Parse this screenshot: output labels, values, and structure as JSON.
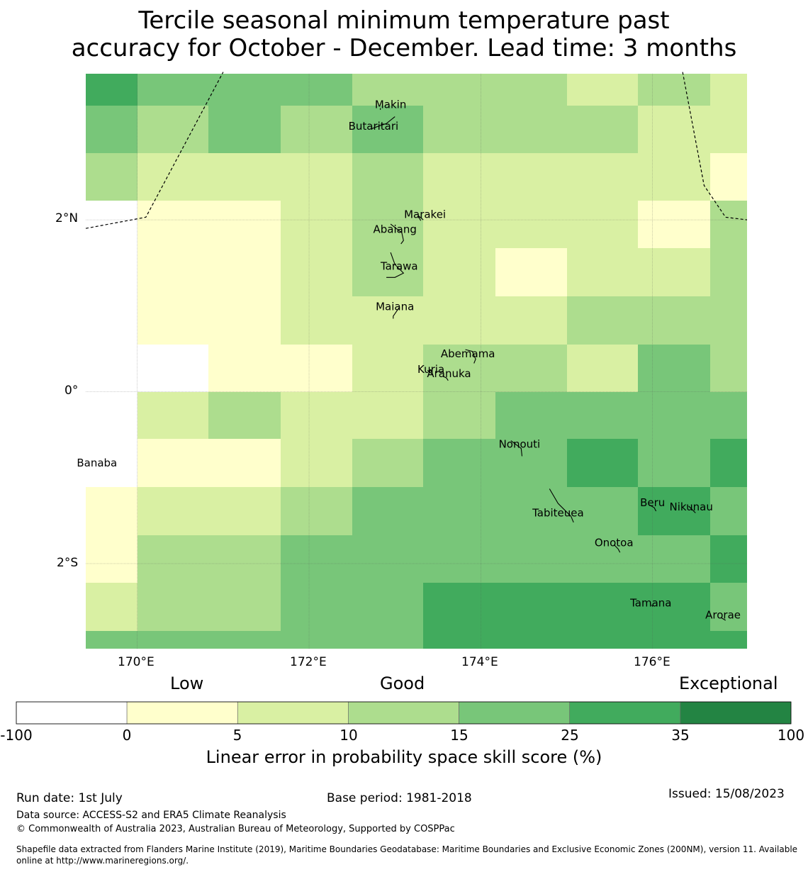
{
  "title": {
    "line1": "Tercile seasonal minimum temperature past",
    "line2": "accuracy for October - December. Lead time: 3 months"
  },
  "axes": {
    "lon_ticks": [
      "170°E",
      "172°E",
      "174°E",
      "176°E"
    ],
    "lat_ticks": [
      "2°N",
      "0°",
      "2°S"
    ]
  },
  "places": [
    {
      "name": "Makin",
      "lon": 172.95,
      "lat": 3.3
    },
    {
      "name": "Butaritari",
      "lon": 172.75,
      "lat": 3.05
    },
    {
      "name": "Marakei",
      "lon": 173.35,
      "lat": 2.02
    },
    {
      "name": "Abaiang",
      "lon": 173.0,
      "lat": 1.85
    },
    {
      "name": "Tarawa",
      "lon": 173.05,
      "lat": 1.42
    },
    {
      "name": "Maiana",
      "lon": 173.0,
      "lat": 0.95
    },
    {
      "name": "Abemama",
      "lon": 173.85,
      "lat": 0.4
    },
    {
      "name": "Kuria",
      "lon": 173.42,
      "lat": 0.22
    },
    {
      "name": "Aranuka",
      "lon": 173.63,
      "lat": 0.17
    },
    {
      "name": "Nonouti",
      "lon": 174.45,
      "lat": -0.65
    },
    {
      "name": "Banaba",
      "lon": 169.53,
      "lat": -0.87
    },
    {
      "name": "Beru",
      "lon": 176.0,
      "lat": -1.33
    },
    {
      "name": "Tabiteuea",
      "lon": 174.9,
      "lat": -1.45
    },
    {
      "name": "Nikunau",
      "lon": 176.45,
      "lat": -1.38
    },
    {
      "name": "Onotoa",
      "lon": 175.55,
      "lat": -1.8
    },
    {
      "name": "Tamana",
      "lon": 175.98,
      "lat": -2.5
    },
    {
      "name": "Arorae",
      "lon": 176.82,
      "lat": -2.64
    }
  ],
  "colorbar": {
    "words": [
      "Low",
      "Good",
      "Exceptional"
    ],
    "ticks": [
      "-100",
      "0",
      "5",
      "10",
      "15",
      "25",
      "35",
      "100"
    ],
    "colors": [
      "#ffffff",
      "#ffffcc",
      "#d9f0a3",
      "#addd8e",
      "#78c679",
      "#41ab5d",
      "#238443"
    ],
    "label": "Linear error in probability space skill score (%)"
  },
  "footer": {
    "run_date": "Run date: 1st July",
    "base_period": "Base period: 1981-2018",
    "issued": "Issued: 15/08/2023",
    "data_source": "Data source: ACCESS-S2 and ERA5 Climate Reanalysis",
    "copyright": "© Commonwealth of Australia 2023, Australian Bureau of Meteorology, Supported by COSPPac",
    "shapefile1": "Shapefile data extracted from Flanders Marine Institute (2019), Maritime Boundaries Geodatabase: Maritime Boundaries and Exclusive Economic Zones (200NM), version 11. Available",
    "shapefile2": "online at http://www.marineregions.org/."
  },
  "chart_data": {
    "type": "heatmap",
    "x_label": "",
    "y_label": "",
    "lon_range": [
      169.4,
      177.1
    ],
    "lat_range": [
      -2.99,
      3.7
    ],
    "lon_edges": [
      169.4,
      170.0,
      170.83,
      171.67,
      172.5,
      173.33,
      174.17,
      175.0,
      175.83,
      176.67,
      177.1
    ],
    "lat_edges": [
      3.7,
      3.33,
      2.78,
      2.22,
      1.67,
      1.11,
      0.55,
      0.0,
      -0.55,
      -1.11,
      -1.67,
      -2.22,
      -2.78,
      -2.99
    ],
    "color_classes": [
      "<0",
      "0-5",
      "5-10",
      "10-15",
      "15-25",
      "25-35",
      ">35"
    ],
    "cell_class_index": [
      [
        5,
        4,
        4,
        4,
        3,
        3,
        3,
        2,
        3,
        2
      ],
      [
        4,
        3,
        4,
        3,
        4,
        3,
        3,
        3,
        2,
        2
      ],
      [
        3,
        2,
        2,
        2,
        3,
        2,
        2,
        2,
        2,
        1
      ],
      [
        0,
        1,
        1,
        2,
        3,
        2,
        2,
        2,
        1,
        3
      ],
      [
        0,
        1,
        1,
        2,
        3,
        2,
        1,
        2,
        2,
        3
      ],
      [
        0,
        1,
        1,
        2,
        2,
        2,
        2,
        3,
        3,
        3
      ],
      [
        0,
        0,
        1,
        1,
        2,
        3,
        3,
        2,
        4,
        3
      ],
      [
        0,
        2,
        3,
        2,
        2,
        3,
        4,
        4,
        4,
        4
      ],
      [
        0,
        1,
        1,
        2,
        3,
        4,
        4,
        5,
        4,
        5
      ],
      [
        1,
        2,
        2,
        3,
        4,
        4,
        4,
        4,
        5,
        4
      ],
      [
        1,
        3,
        3,
        4,
        4,
        4,
        4,
        4,
        4,
        5
      ],
      [
        2,
        3,
        3,
        4,
        4,
        5,
        5,
        5,
        5,
        4
      ],
      [
        4,
        4,
        4,
        4,
        4,
        5,
        5,
        5,
        5,
        5
      ]
    ]
  }
}
